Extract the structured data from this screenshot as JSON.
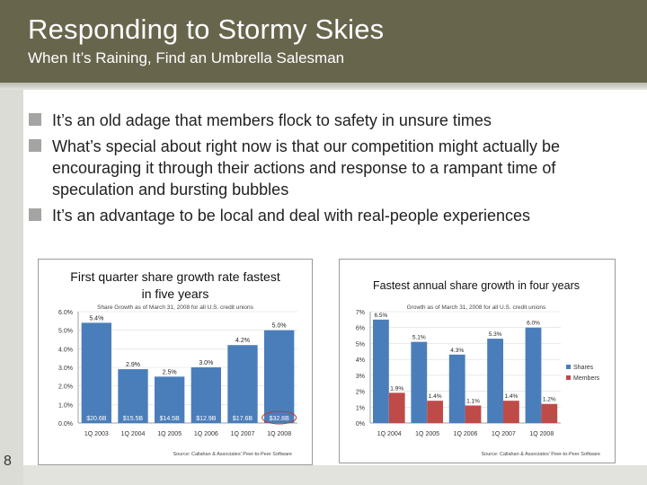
{
  "slide": {
    "title": "Responding to Stormy Skies",
    "subtitle": "When It’s Raining, Find an Umbrella Salesman",
    "page_number": "8",
    "bullets": [
      "It’s an old adage that members flock to safety in unsure times",
      "What’s special about right now is that our competition might actually be encouraging it through their actions and response to a rampant time of speculation and bursting bubbles",
      "It’s an advantage to be local and deal with real-people experiences"
    ],
    "colors": {
      "title_bar": "#67664d",
      "shares": "#4a7ebb",
      "members": "#be4b48"
    }
  },
  "chart_data": [
    {
      "type": "bar",
      "title_line1": "First quarter share growth rate fastest",
      "title_line2": "in five years",
      "subtitle": "Share Growth as of March 31, 2008 for all U.S. credit unions",
      "categories": [
        "1Q 2003",
        "1Q 2004",
        "1Q 2005",
        "1Q 2006",
        "1Q 2007",
        "1Q 2008"
      ],
      "values": [
        5.4,
        2.9,
        2.5,
        3.0,
        4.2,
        5.0
      ],
      "value_labels": [
        "5.4%",
        "2.9%",
        "2.5%",
        "3.0%",
        "4.2%",
        "5.0%"
      ],
      "inner_labels": [
        "$20.6B",
        "$15.5B",
        "$14.5B",
        "$12.9B",
        "$17.6B",
        "$32.8B"
      ],
      "ylim": [
        0,
        6
      ],
      "ytick_labels": [
        "0.0%",
        "1.0%",
        "2.0%",
        "3.0%",
        "4.0%",
        "5.0%",
        "6.0%"
      ],
      "source": "Source: Callahan & Associates' Peer-to-Peer Software"
    },
    {
      "type": "bar",
      "title": "Fastest annual share growth in four years",
      "subtitle": "Growth as of March 31, 2008 for all U.S. credit unions",
      "categories": [
        "1Q 2004",
        "1Q 2005",
        "1Q 2006",
        "1Q 2007",
        "1Q 2008"
      ],
      "series": [
        {
          "name": "Shares",
          "values": [
            6.5,
            5.1,
            4.3,
            5.3,
            6.0
          ],
          "labels": [
            "6.5%",
            "5.1%",
            "4.3%",
            "5.3%",
            "6.0%"
          ]
        },
        {
          "name": "Members",
          "values": [
            1.9,
            1.4,
            1.1,
            1.4,
            1.2
          ],
          "labels": [
            "1.9%",
            "1.4%",
            "1.1%",
            "1.4%",
            "1.2%"
          ]
        }
      ],
      "ylim": [
        0,
        7
      ],
      "ytick_labels": [
        "0%",
        "1%",
        "2%",
        "3%",
        "4%",
        "5%",
        "6%",
        "7%"
      ],
      "legend_position": "right",
      "source": "Source: Callahan & Associates' Peer-to-Peer Software"
    }
  ]
}
